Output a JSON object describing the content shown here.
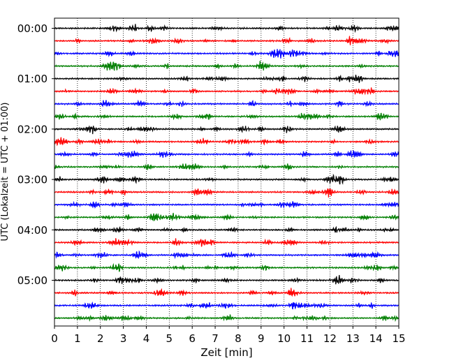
{
  "chart_data": {
    "type": "line",
    "title": "",
    "xlabel": "Zeit  [min]",
    "ylabel": "UTC (Lokalzeit = UTC + 01:00)",
    "xlim": [
      0,
      15
    ],
    "x_ticks": [
      "0",
      "1",
      "2",
      "3",
      "4",
      "5",
      "6",
      "7",
      "8",
      "9",
      "10",
      "11",
      "12",
      "13",
      "14",
      "15"
    ],
    "y_ticks": [
      "00:00",
      "01:00",
      "02:00",
      "03:00",
      "04:00",
      "05:00"
    ],
    "grid": "vertical dotted",
    "trace_minutes": 15,
    "trace_colors": [
      "#000000",
      "#ff0000",
      "#0000ff",
      "#007f00"
    ],
    "trace_starts_utc": [
      "00:00",
      "00:15",
      "00:30",
      "00:45",
      "01:00",
      "01:15",
      "01:30",
      "01:45",
      "02:00",
      "02:15",
      "02:30",
      "02:45",
      "03:00",
      "03:15",
      "03:30",
      "03:45",
      "04:00",
      "04:15",
      "04:30",
      "04:45",
      "05:00",
      "05:15",
      "05:30",
      "05:45"
    ]
  }
}
